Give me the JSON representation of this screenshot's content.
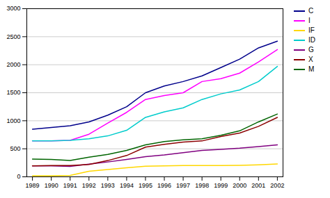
{
  "chart_data": {
    "type": "line",
    "x": [
      1989,
      1990,
      1991,
      1992,
      1993,
      1994,
      1995,
      1996,
      1997,
      1998,
      1999,
      2000,
      2001,
      2002
    ],
    "series": [
      {
        "name": "C",
        "color": "#00008B",
        "values": [
          850,
          880,
          910,
          980,
          1100,
          1250,
          1500,
          1620,
          1700,
          1800,
          1950,
          2100,
          2300,
          2420
        ]
      },
      {
        "name": "I",
        "color": "#FF00FF",
        "values": [
          640,
          640,
          650,
          760,
          960,
          1150,
          1380,
          1450,
          1500,
          1700,
          1750,
          1850,
          2050,
          2270
        ]
      },
      {
        "name": "IF",
        "color": "#FFD700",
        "values": [
          20,
          20,
          25,
          100,
          130,
          160,
          190,
          195,
          200,
          200,
          200,
          205,
          215,
          230
        ]
      },
      {
        "name": "ID",
        "color": "#00CCCC",
        "values": [
          640,
          640,
          650,
          680,
          730,
          830,
          1060,
          1160,
          1230,
          1380,
          1480,
          1550,
          1700,
          1970
        ]
      },
      {
        "name": "G",
        "color": "#800080",
        "values": [
          195,
          195,
          185,
          225,
          265,
          310,
          360,
          390,
          430,
          470,
          490,
          510,
          540,
          570
        ]
      },
      {
        "name": "X",
        "color": "#8B0000",
        "values": [
          195,
          200,
          200,
          220,
          290,
          380,
          530,
          580,
          620,
          640,
          720,
          780,
          900,
          1060
        ]
      },
      {
        "name": "M",
        "color": "#006400",
        "values": [
          315,
          310,
          290,
          350,
          400,
          470,
          570,
          630,
          660,
          680,
          740,
          820,
          980,
          1120
        ]
      }
    ],
    "xlim": [
      1988.7,
      2002.3
    ],
    "xticks": [
      1989,
      1990,
      1991,
      1992,
      1993,
      1994,
      1995,
      1996,
      1997,
      1998,
      1999,
      2000,
      2001,
      2002
    ],
    "ylim": [
      0,
      3000
    ],
    "yticks": [
      0,
      500,
      1000,
      1500,
      2000,
      2500,
      3000
    ],
    "grid": "y",
    "legend": "right"
  }
}
